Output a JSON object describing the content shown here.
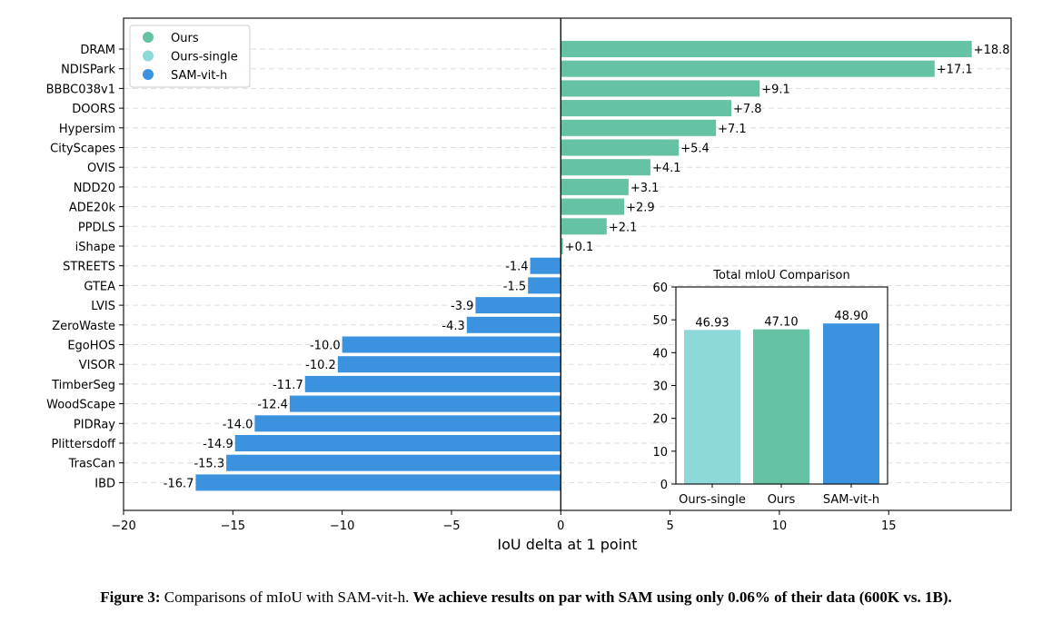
{
  "chart_data": [
    {
      "type": "bar",
      "orientation": "horizontal",
      "xlabel": "IoU delta at 1 point",
      "ylabel": "",
      "xlim": [
        -20,
        20.6
      ],
      "xticks": [
        -20,
        -15,
        -10,
        -5,
        0,
        5,
        10,
        15
      ],
      "xtick_labels": [
        "−20",
        "−15",
        "−10",
        "−5",
        "0",
        "5",
        "10",
        "15"
      ],
      "grid": "horizontal dashed",
      "legend_position": "top-left",
      "legend": [
        {
          "name": "Ours",
          "color": "#66c2a5"
        },
        {
          "name": "Ours-single",
          "color": "#8dd9d9"
        },
        {
          "name": "SAM-vit-h",
          "color": "#3b93e0"
        }
      ],
      "categories": [
        "DRAM",
        "NDISPark",
        "BBBC038v1",
        "DOORS",
        "Hypersim",
        "CityScapes",
        "OVIS",
        "NDD20",
        "ADE20k",
        "PPDLS",
        "iShape",
        "STREETS",
        "GTEA",
        "LVIS",
        "ZeroWaste",
        "EgoHOS",
        "VISOR",
        "TimberSeg",
        "WoodScape",
        "PIDRay",
        "Plittersdoff",
        "TrasCan",
        "IBD"
      ],
      "values": [
        18.8,
        17.1,
        9.1,
        7.8,
        7.1,
        5.4,
        4.1,
        3.1,
        2.9,
        2.1,
        0.1,
        -1.4,
        -1.5,
        -3.9,
        -4.3,
        -10.0,
        -10.2,
        -11.7,
        -12.4,
        -14.0,
        -14.9,
        -15.3,
        -16.7
      ],
      "value_labels": [
        "+18.8",
        "+17.1",
        "+9.1",
        "+7.8",
        "+7.1",
        "+5.4",
        "+4.1",
        "+3.1",
        "+2.9",
        "+2.1",
        "+0.1",
        "-1.4",
        "-1.5",
        "-3.9",
        "-4.3",
        "-10.0",
        "-10.2",
        "-11.7",
        "-12.4",
        "-14.0",
        "-14.9",
        "-15.3",
        "-16.7"
      ],
      "positive_color": "#66c2a5",
      "negative_color": "#3b93e0"
    },
    {
      "type": "bar",
      "title": "Total mIoU Comparison",
      "categories": [
        "Ours-single",
        "Ours",
        "SAM-vit-h"
      ],
      "values": [
        46.93,
        47.1,
        48.9
      ],
      "value_labels": [
        "46.93",
        "47.10",
        "48.90"
      ],
      "colors": [
        "#8dd9d9",
        "#66c2a5",
        "#3b93e0"
      ],
      "ylim": [
        0,
        60
      ],
      "yticks": [
        0,
        10,
        20,
        30,
        40,
        50,
        60
      ]
    }
  ],
  "caption": {
    "label": "Figure 3:",
    "text": " Comparisons of mIoU with SAM-vit-h. ",
    "bold_text": "We achieve results on par with SAM using only 0.06% of their data (600K vs. 1B)."
  }
}
